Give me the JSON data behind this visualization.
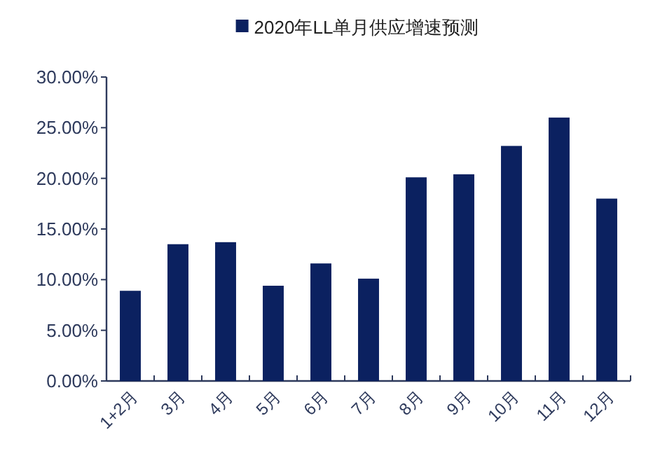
{
  "chart_data": {
    "type": "bar",
    "categories": [
      "1+2月",
      "3月",
      "4月",
      "5月",
      "6月",
      "7月",
      "8月",
      "9月",
      "10月",
      "11月",
      "12月"
    ],
    "series": [
      {
        "name": "2020年LL单月供应增速预测",
        "color": "#0b2160",
        "values": [
          8.9,
          13.5,
          13.7,
          9.4,
          11.6,
          10.1,
          20.1,
          20.4,
          23.2,
          26.0,
          18.0
        ]
      }
    ],
    "ylim": [
      0,
      30
    ],
    "yticks": [
      {
        "value": 0,
        "label": "0.00%"
      },
      {
        "value": 5,
        "label": "5.00%"
      },
      {
        "value": 10,
        "label": "10.00%"
      },
      {
        "value": 15,
        "label": "15.00%"
      },
      {
        "value": 20,
        "label": "20.00%"
      },
      {
        "value": 25,
        "label": "25.00%"
      },
      {
        "value": 30,
        "label": "30.00%"
      }
    ],
    "legend": "top",
    "grid": false
  }
}
